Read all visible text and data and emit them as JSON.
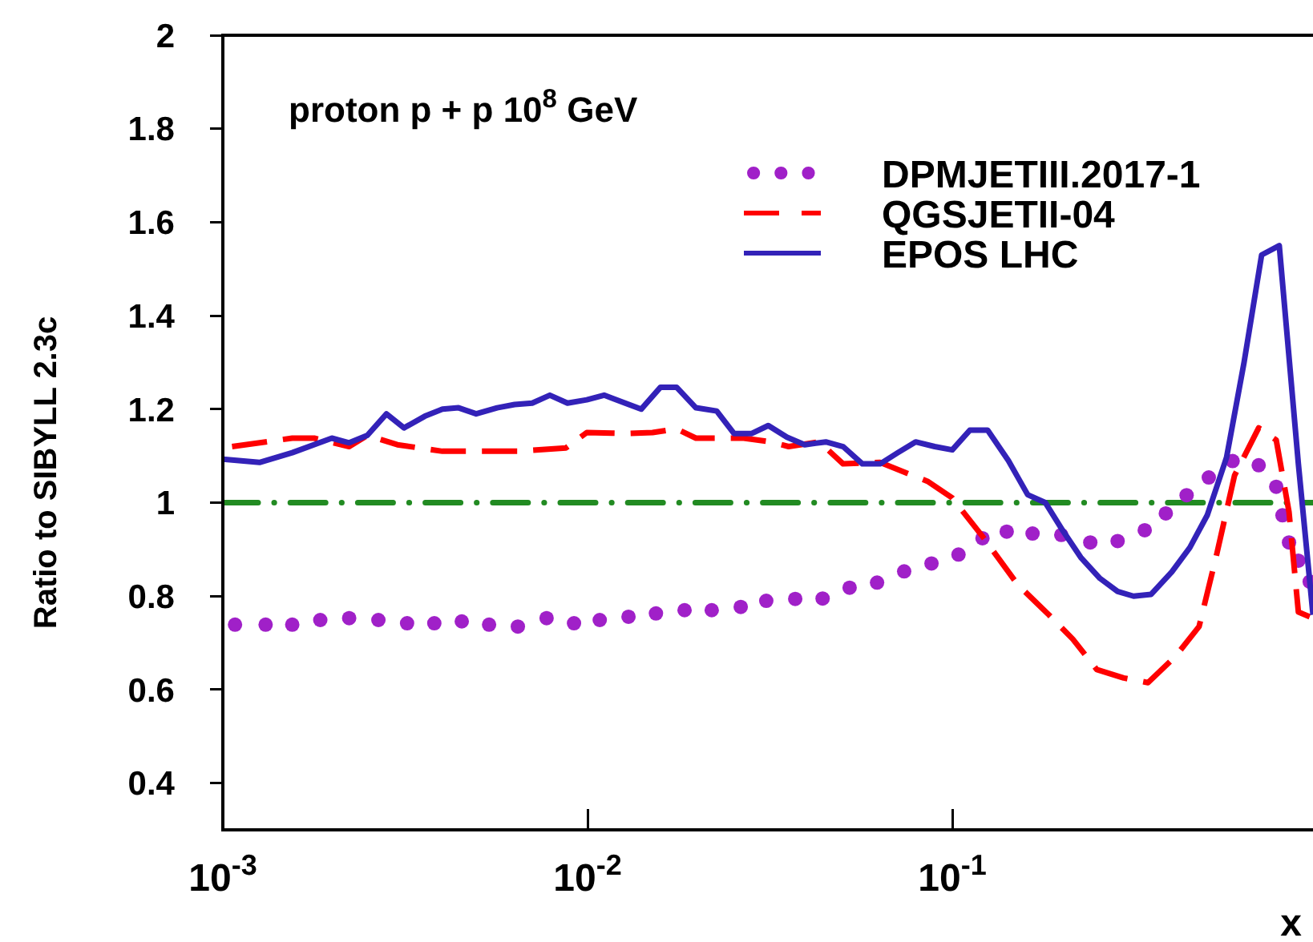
{
  "chart_data": {
    "type": "line",
    "ylabel": "Ratio to SIBYLL 2.3c",
    "xlabel": "x",
    "annotations": [
      "proton  p + p 10$^{8}$ GeV"
    ],
    "log": "x",
    "grid": false,
    "legend": "top right",
    "xlim": [
      0.001,
      1
    ],
    "ylim": [
      0.3,
      2
    ],
    "xticks": [
      {
        "value": 0.001,
        "label": "10$^{-3}$"
      },
      {
        "value": 0.01,
        "label": "10$^{-2}$"
      },
      {
        "value": 0.1,
        "label": "10$^{-1}$"
      }
    ],
    "yticks": [
      0.4,
      0.6,
      0.8,
      1,
      1.2,
      1.4,
      1.6,
      1.8,
      2
    ],
    "ref_lines": [
      {
        "axis": "y",
        "value": 1,
        "color": "#228b22",
        "line_style": "dashed"
      }
    ],
    "series": [
      {
        "name": "DPMJETIII.2017-1",
        "type": "scatter",
        "marker": "circle",
        "color": "#a020c8",
        "x": [
          0.00108,
          0.00131,
          0.00155,
          0.00185,
          0.00222,
          0.00267,
          0.0032,
          0.0038,
          0.00452,
          0.00537,
          0.00644,
          0.00772,
          0.00918,
          0.0108,
          0.01295,
          0.0154,
          0.01845,
          0.0219,
          0.0263,
          0.0309,
          0.0371,
          0.0441,
          0.0523,
          0.0622,
          0.0738,
          0.0877,
          0.104,
          0.121,
          0.141,
          0.166,
          0.199,
          0.239,
          0.284,
          0.337,
          0.385,
          0.439,
          0.505,
          0.587,
          0.692,
          0.773,
          0.804,
          0.838,
          0.889,
          0.955
        ],
        "values": [
          0.739,
          0.739,
          0.739,
          0.749,
          0.753,
          0.749,
          0.742,
          0.742,
          0.746,
          0.739,
          0.735,
          0.753,
          0.742,
          0.749,
          0.756,
          0.763,
          0.77,
          0.77,
          0.777,
          0.79,
          0.794,
          0.795,
          0.818,
          0.829,
          0.853,
          0.87,
          0.889,
          0.924,
          0.938,
          0.934,
          0.931,
          0.915,
          0.918,
          0.941,
          0.977,
          1.016,
          1.054,
          1.089,
          1.08,
          1.034,
          0.973,
          0.915,
          0.876,
          0.831
        ]
      },
      {
        "name": "QGSJETII-04",
        "type": "line",
        "line_style": "dashed",
        "color": "#ff0000",
        "x": [
          0.00106,
          0.00155,
          0.00178,
          0.00222,
          0.00249,
          0.00301,
          0.004,
          0.00588,
          0.00644,
          0.00872,
          0.00995,
          0.01295,
          0.01507,
          0.01754,
          0.01982,
          0.0268,
          0.0318,
          0.0356,
          0.0432,
          0.0502,
          0.0634,
          0.0859,
          0.1,
          0.121,
          0.151,
          0.184,
          0.214,
          0.249,
          0.295,
          0.344,
          0.408,
          0.475,
          0.531,
          0.594,
          0.692,
          0.773,
          0.838,
          0.889,
          0.975
        ],
        "values": [
          1.12,
          1.138,
          1.138,
          1.12,
          1.144,
          1.124,
          1.11,
          1.11,
          1.11,
          1.117,
          1.15,
          1.148,
          1.15,
          1.158,
          1.138,
          1.138,
          1.13,
          1.12,
          1.13,
          1.083,
          1.086,
          1.045,
          1.01,
          0.928,
          0.825,
          0.76,
          0.708,
          0.643,
          0.625,
          0.615,
          0.67,
          0.735,
          0.89,
          1.058,
          1.16,
          1.134,
          0.98,
          0.766,
          0.753
        ]
      },
      {
        "name": "EPOS LHC",
        "type": "line",
        "line_style": "solid",
        "color": "#3322b8",
        "x": [
          0.001,
          0.00126,
          0.00155,
          0.00199,
          0.00222,
          0.00249,
          0.00281,
          0.00314,
          0.00358,
          0.004,
          0.00443,
          0.00495,
          0.00565,
          0.00631,
          0.00705,
          0.00788,
          0.00881,
          0.00995,
          0.0111,
          0.01403,
          0.01585,
          0.01754,
          0.01982,
          0.0226,
          0.0252,
          0.0282,
          0.0313,
          0.0352,
          0.0394,
          0.045,
          0.0502,
          0.0567,
          0.0634,
          0.0709,
          0.0793,
          0.0895,
          0.1,
          0.1117,
          0.125,
          0.1425,
          0.161,
          0.18,
          0.201,
          0.225,
          0.254,
          0.284,
          0.314,
          0.351,
          0.4,
          0.448,
          0.5,
          0.565,
          0.631,
          0.705,
          0.788,
          0.889,
          0.975
        ],
        "values": [
          1.093,
          1.086,
          1.107,
          1.138,
          1.128,
          1.144,
          1.19,
          1.16,
          1.185,
          1.2,
          1.203,
          1.19,
          1.203,
          1.21,
          1.213,
          1.23,
          1.213,
          1.22,
          1.23,
          1.2,
          1.247,
          1.247,
          1.203,
          1.196,
          1.148,
          1.148,
          1.165,
          1.14,
          1.124,
          1.13,
          1.12,
          1.083,
          1.083,
          1.107,
          1.13,
          1.12,
          1.113,
          1.155,
          1.155,
          1.09,
          1.017,
          1.0,
          0.94,
          0.883,
          0.838,
          0.81,
          0.8,
          0.804,
          0.852,
          0.904,
          0.973,
          1.097,
          1.3,
          1.53,
          1.55,
          1.083,
          0.76
        ]
      }
    ]
  }
}
